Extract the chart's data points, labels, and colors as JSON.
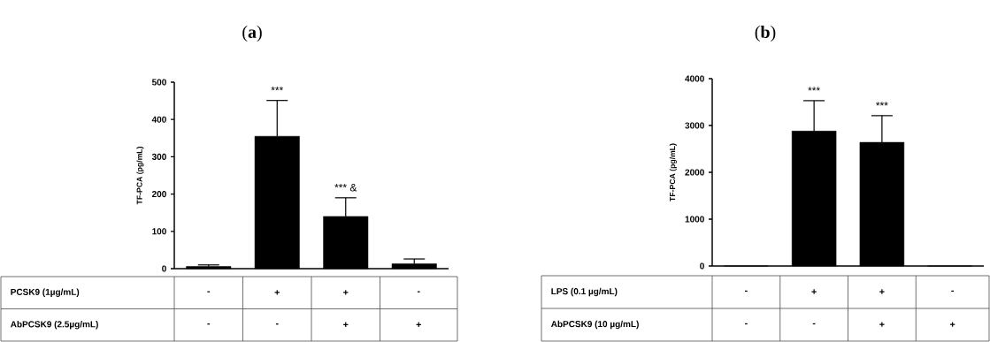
{
  "chart_data": [
    {
      "type": "bar",
      "title": "(**a**)",
      "ylabel": "TF-PCA (pg/mL)",
      "categories": [
        null,
        null,
        null,
        null
      ],
      "color": "#000000",
      "values": [
        6,
        355,
        140,
        13
      ],
      "errors": [
        4,
        96,
        50,
        13
      ],
      "ylim": [
        0,
        500
      ],
      "yticks": [
        0,
        100,
        200,
        300,
        400,
        500
      ],
      "annotations": [
        {
          "text": "***",
          "y": 451
        },
        {
          "text": "*** &",
          "y": 190
        },
        "PCSK9 (1µg/mL)",
        "-",
        "+",
        "+",
        "-",
        "AbPCSK9 (2.5µg/mL)",
        "-",
        "-",
        "+",
        "+"
      ]
    },
    {
      "type": "bar",
      "title": "(**b**)",
      "ylabel": "TF-PCA (pg/mL)",
      "categories": [
        null,
        null,
        null,
        null
      ],
      "color": "#000000",
      "values": [
        0,
        2880,
        2640,
        0
      ],
      "errors": [
        null,
        650,
        570,
        null
      ],
      "ylim": [
        0,
        4000
      ],
      "yticks": [
        0,
        1000,
        2000,
        3000,
        4000
      ],
      "annotations": [
        {
          "text": "***",
          "y": 3530
        },
        {
          "text": "***",
          "y": 3210
        },
        "LPS (0.1 µg/mL)",
        "-",
        "+",
        "+",
        "-",
        "AbPCSK9 (10 µg/mL)",
        "-",
        "-",
        "+",
        "+"
      ]
    }
  ]
}
